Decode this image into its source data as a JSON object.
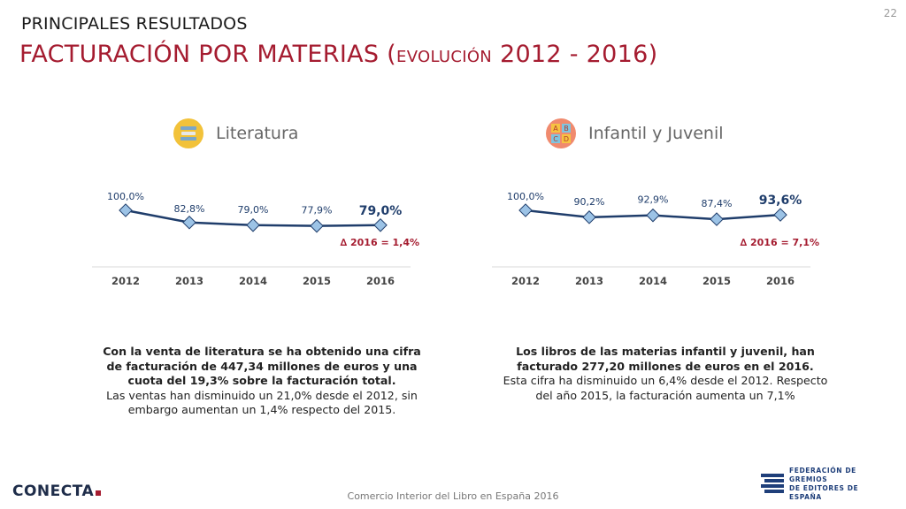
{
  "page_number": "22",
  "header": {
    "supertitle": "PRINCIPALES RESULTADOS",
    "title_main": "FACTURACIÓN POR MATERIAS (",
    "title_small": "EVOLUCIÓN",
    "title_end": " 2012 - 2016)"
  },
  "chart_data": [
    {
      "type": "line",
      "title": "Literatura",
      "categories": [
        "2012",
        "2013",
        "2014",
        "2015",
        "2016"
      ],
      "values": [
        100.0,
        82.8,
        79.0,
        77.9,
        79.0
      ],
      "value_labels": [
        "100,0%",
        "82,8%",
        "79,0%",
        "77,9%",
        "79,0%"
      ],
      "ylim": [
        0,
        100
      ],
      "annotation": "∆ 2016 = 1,4%",
      "line_color": "#1f3d6b",
      "marker_color": "#9cc3e6"
    },
    {
      "type": "line",
      "title": "Infantil y Juvenil",
      "categories": [
        "2012",
        "2013",
        "2014",
        "2015",
        "2016"
      ],
      "values": [
        100.0,
        90.2,
        92.9,
        87.4,
        93.6
      ],
      "value_labels": [
        "100,0%",
        "90,2%",
        "92,9%",
        "87,4%",
        "93,6%"
      ],
      "ylim": [
        0,
        100
      ],
      "annotation": "∆ 2016 = 7,1%",
      "line_color": "#1f3d6b",
      "marker_color": "#9cc3e6"
    }
  ],
  "icons": {
    "literatura": "books-icon",
    "infantil": "abcd-blocks-icon",
    "icon_letters": [
      "A",
      "B",
      "C",
      "D"
    ]
  },
  "descriptions": {
    "literatura": {
      "bold": "Con la venta de literatura se ha obtenido una cifra de facturación de 447,34 millones de euros y una cuota del 19,3% sobre la facturación total.",
      "normal": "Las ventas han disminuido un 21,0% desde el 2012, sin embargo aumentan un 1,4% respecto del 2015."
    },
    "infantil": {
      "bold": "Los libros de las materias infantil y juvenil, han facturado 277,20 millones de euros en el 2016.",
      "normal": "Esta cifra ha disminuido un 6,4% desde el 2012. Respecto del año 2015, la facturación aumenta un 7,1%"
    }
  },
  "footer": {
    "center_text": "Comercio Interior del Libro en España 2016",
    "logo_left": "CONECTA",
    "org_line1": "FEDERACIÓN DE GREMIOS",
    "org_line2": "DE EDITORES DE ESPAÑA"
  },
  "colors": {
    "accent_red": "#a51c30",
    "navy": "#1f3d6b"
  }
}
